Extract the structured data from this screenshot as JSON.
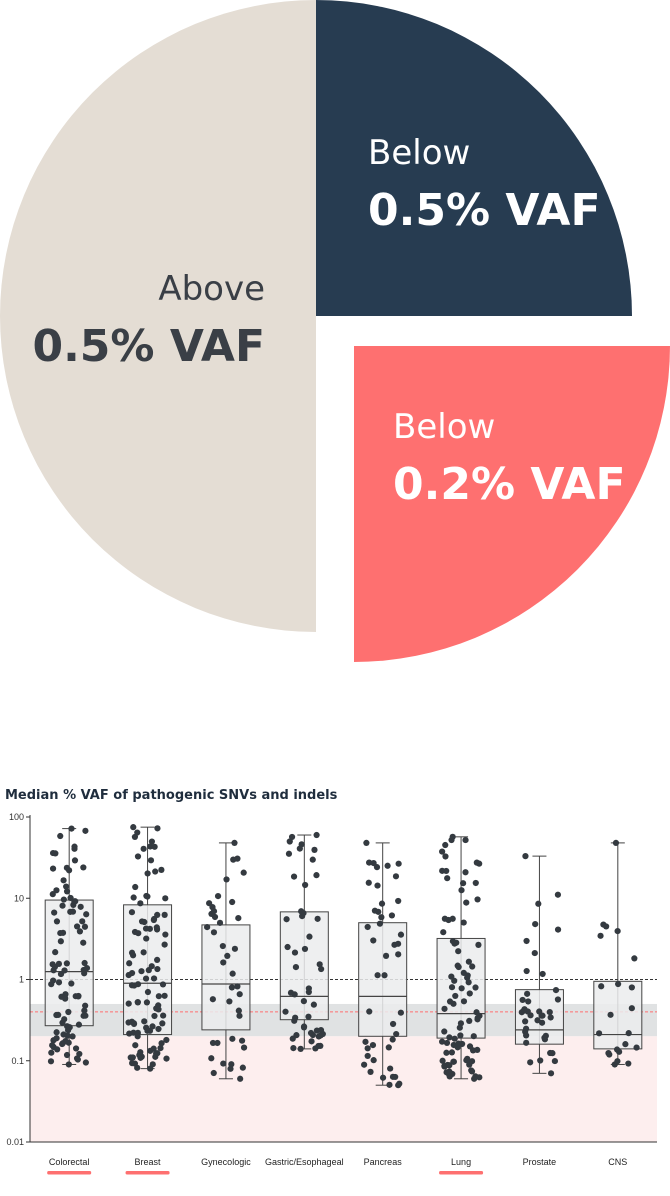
{
  "chart_data": [
    {
      "type": "pie",
      "slices": [
        {
          "label_line1": "Below",
          "label_line2": "0.5% VAF",
          "value": 25,
          "color": "#273c51",
          "exploded": false
        },
        {
          "label_line1": "Below",
          "label_line2": "0.2% VAF",
          "value": 25,
          "color": "#fe7070",
          "exploded": true
        },
        {
          "label_line1": "Above",
          "label_line2": "0.5% VAF",
          "value": 50,
          "color": "#e4ddd4",
          "exploded": false
        }
      ]
    },
    {
      "type": "box",
      "title": "Median % VAF of pathogenic SNVs and indels",
      "yscale": "log",
      "ylim": [
        0.01,
        100
      ],
      "yticks": [
        "0.01",
        "0.1",
        "1",
        "10",
        "100"
      ],
      "reference_lines": [
        {
          "value": 1.0,
          "style": "dashed",
          "color": "#333333"
        },
        {
          "value": 0.4,
          "style": "dashed",
          "color": "#fe7070"
        }
      ],
      "shaded_bands": [
        {
          "from": 0.2,
          "to": 0.5,
          "color": "#e0e2e3"
        },
        {
          "from": 0.01,
          "to": 0.2,
          "color": "#fdeeee"
        }
      ],
      "highlight_color": "#fe7070",
      "categories": [
        {
          "name": "Colorectal",
          "highlight": true,
          "min": 0.09,
          "q1": 0.27,
          "median": 1.25,
          "q3": 9.5,
          "max": 72,
          "n_points": 95
        },
        {
          "name": "Breast",
          "highlight": true,
          "min": 0.08,
          "q1": 0.21,
          "median": 0.9,
          "q3": 8.3,
          "max": 75,
          "n_points": 100
        },
        {
          "name": "Gynecologic",
          "highlight": false,
          "min": 0.06,
          "q1": 0.24,
          "median": 0.88,
          "q3": 4.7,
          "max": 48,
          "n_points": 40
        },
        {
          "name": "Gastric/Esophageal",
          "highlight": false,
          "min": 0.14,
          "q1": 0.32,
          "median": 0.62,
          "q3": 6.8,
          "max": 60,
          "n_points": 50
        },
        {
          "name": "Pancreas",
          "highlight": false,
          "min": 0.05,
          "q1": 0.2,
          "median": 0.62,
          "q3": 5.0,
          "max": 48,
          "n_points": 45
        },
        {
          "name": "Lung",
          "highlight": true,
          "min": 0.06,
          "q1": 0.19,
          "median": 0.38,
          "q3": 3.2,
          "max": 57,
          "n_points": 90
        },
        {
          "name": "Prostate",
          "highlight": false,
          "min": 0.07,
          "q1": 0.16,
          "median": 0.24,
          "q3": 0.75,
          "max": 33,
          "n_points": 40
        },
        {
          "name": "CNS",
          "highlight": false,
          "min": 0.09,
          "q1": 0.14,
          "median": 0.21,
          "q3": 0.95,
          "max": 48,
          "n_points": 22
        }
      ],
      "point_color": "#343a40",
      "box_fill": "#ebeced",
      "box_stroke": "#444444"
    }
  ]
}
